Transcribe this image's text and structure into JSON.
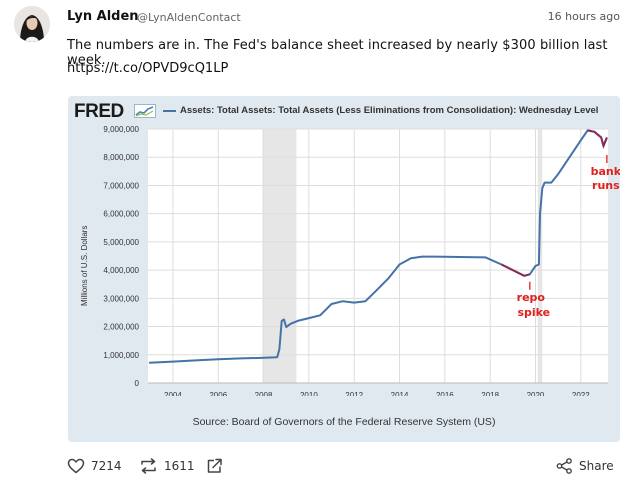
{
  "tweet": {
    "author": "Lyn Alden",
    "handle": "@LynAldenContact",
    "time": "16 hours ago",
    "text": "The numbers are in. The Fed's balance sheet increased by nearly $300 billion last week.",
    "link": "https://t.co/OPVD9cQ1LP"
  },
  "card": {
    "logo": "FRED",
    "series_label": "Assets: Total Assets: Total Assets (Less Eliminations from Consolidation): Wednesday Level",
    "y_title": "Millions of U.S. Dollars",
    "source": "Source: Board of Governors of the Federal Reserve System (US)",
    "annotations": {
      "repo_1": "repo",
      "repo_2": "spike",
      "bank_1": "bank",
      "bank_2": "runs"
    }
  },
  "actions": {
    "likes": "7214",
    "retweets": "1611",
    "share": "Share"
  },
  "colors": {
    "series": "#4572a7",
    "annotation": "#e0201c",
    "highlight": "#8a2a5a",
    "recession": "#e6e6e6"
  },
  "chart_data": {
    "type": "line",
    "title": "Assets: Total Assets: Total Assets (Less Eliminations from Consolidation): Wednesday Level",
    "ylabel": "Millions of U.S. Dollars",
    "xlabel": "",
    "xlim": [
      2002.9,
      2023.2
    ],
    "ylim": [
      0,
      9000000
    ],
    "yticks": [
      0,
      1000000,
      2000000,
      3000000,
      4000000,
      5000000,
      6000000,
      7000000,
      8000000,
      9000000
    ],
    "ytick_labels": [
      "0",
      "1,000,000",
      "2,000,000",
      "3,000,000",
      "4,000,000",
      "5,000,000",
      "6,000,000",
      "7,000,000",
      "8,000,000",
      "9,000,000"
    ],
    "xticks": [
      2004,
      2006,
      2008,
      2010,
      2012,
      2014,
      2016,
      2018,
      2020,
      2022
    ],
    "xtick_labels": [
      "2004",
      "2006",
      "2008",
      "2010",
      "2012",
      "2014",
      "2016",
      "2018",
      "2020",
      "2022"
    ],
    "grid": true,
    "recessions": [
      [
        2007.95,
        2009.45
      ],
      [
        2020.1,
        2020.3
      ]
    ],
    "x": [
      2002.95,
      2004,
      2005,
      2006,
      2007,
      2007.9,
      2008.6,
      2008.7,
      2008.8,
      2008.9,
      2009.0,
      2009.2,
      2009.5,
      2010,
      2010.5,
      2011,
      2011.5,
      2012,
      2012.5,
      2013,
      2013.5,
      2014,
      2014.5,
      2015,
      2015.5,
      2016,
      2017,
      2017.8,
      2018.5,
      2019,
      2019.5,
      2019.75,
      2020.0,
      2020.15,
      2020.2,
      2020.3,
      2020.4,
      2020.7,
      2021,
      2021.5,
      2022,
      2022.3,
      2022.6,
      2022.9,
      2023.0,
      2023.15
    ],
    "y": [
      720000,
      760000,
      800000,
      840000,
      870000,
      890000,
      910000,
      1200000,
      2200000,
      2250000,
      1980000,
      2100000,
      2200000,
      2300000,
      2400000,
      2800000,
      2900000,
      2850000,
      2900000,
      3300000,
      3700000,
      4200000,
      4420000,
      4480000,
      4480000,
      4470000,
      4460000,
      4450000,
      4200000,
      4000000,
      3800000,
      3850000,
      4150000,
      4200000,
      6000000,
      6900000,
      7100000,
      7100000,
      7400000,
      8000000,
      8600000,
      8950000,
      8900000,
      8700000,
      8400000,
      8700000
    ],
    "series": [
      {
        "name": "Assets: Total Assets: Total Assets (Less Eliminations from Consolidation): Wednesday Level"
      }
    ]
  }
}
